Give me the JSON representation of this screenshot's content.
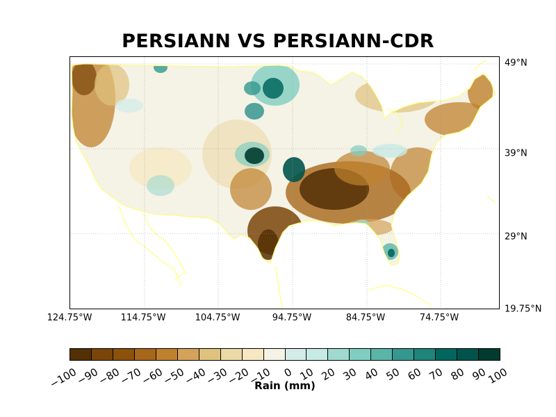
{
  "title": "PERSIANN VS PERSIANN-CDR",
  "map": {
    "projection": "cylindrical",
    "lon_range": [
      -124.75,
      -66.75
    ],
    "lat_range": [
      19.75,
      49.5
    ],
    "lon_labels": [
      "124.75°W",
      "114.75°W",
      "104.75°W",
      "94.75°W",
      "84.75°W",
      "74.75°W"
    ],
    "lon_values": [
      -124.75,
      -114.75,
      -104.75,
      -94.75,
      -84.75,
      -74.75
    ],
    "lat_labels": [
      "49°N",
      "39°N",
      "29°N",
      "19.75°N"
    ],
    "lat_values": [
      49,
      39,
      29,
      19.75
    ],
    "field": "rain difference",
    "units": "mm",
    "coastline_color": "#ffff66",
    "gridlines": true
  },
  "colorbar": {
    "label": "Rain (mm)",
    "ticks": [
      "−100",
      "−90",
      "−80",
      "−70",
      "−60",
      "−50",
      "−40",
      "−30",
      "−20",
      "−10",
      "0",
      "10",
      "20",
      "30",
      "40",
      "50",
      "60",
      "70",
      "80",
      "90",
      "100"
    ],
    "colors": [
      "#543005",
      "#7a4509",
      "#8c510a",
      "#a7671a",
      "#bf812d",
      "#d4a35b",
      "#dfc27d",
      "#ecd9a8",
      "#f6e8c3",
      "#f5f2e6",
      "#eef4f2",
      "#d4ece8",
      "#c7eae5",
      "#9fd9cf",
      "#80cdc1",
      "#5ab4a7",
      "#35978f",
      "#1f847a",
      "#01665e",
      "#01544b",
      "#003c30"
    ]
  }
}
